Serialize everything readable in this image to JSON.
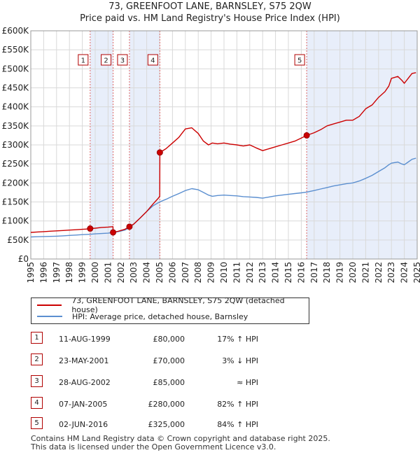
{
  "title_line1": "73, GREENFOOT LANE, BARNSLEY, S75 2QW",
  "title_line2": "Price paid vs. HM Land Registry's House Price Index (HPI)",
  "legend": [
    {
      "label": "73, GREENFOOT LANE, BARNSLEY, S75 2QW (detached house)",
      "color": "#cc0000"
    },
    {
      "label": "HPI: Average price, detached house, Barnsley",
      "color": "#5b8fd0"
    }
  ],
  "transactions": [
    {
      "num": "1",
      "date": "11-AUG-1999",
      "price": "£80,000",
      "hpi": "17% ↑ HPI"
    },
    {
      "num": "2",
      "date": "23-MAY-2001",
      "price": "£70,000",
      "hpi": "3% ↓ HPI"
    },
    {
      "num": "3",
      "date": "28-AUG-2002",
      "price": "£85,000",
      "hpi": "≈ HPI"
    },
    {
      "num": "4",
      "date": "07-JAN-2005",
      "price": "£280,000",
      "hpi": "82% ↑ HPI"
    },
    {
      "num": "5",
      "date": "02-JUN-2016",
      "price": "£325,000",
      "hpi": "84% ↑ HPI"
    }
  ],
  "footer_line1": "Contains HM Land Registry data © Crown copyright and database right 2025.",
  "footer_line2": "This data is licensed under the Open Government Licence v3.0.",
  "chart_data": {
    "type": "line",
    "title": "73, GREENFOOT LANE, BARNSLEY, S75 2QW",
    "subtitle": "Price paid vs. HM Land Registry's House Price Index (HPI)",
    "xlim": [
      1995,
      2025
    ],
    "ylim": [
      0,
      600000
    ],
    "x_ticks": [
      "1995",
      "1996",
      "1997",
      "1998",
      "1999",
      "2000",
      "2001",
      "2002",
      "2003",
      "2004",
      "2005",
      "2006",
      "2007",
      "2008",
      "2009",
      "2010",
      "2011",
      "2012",
      "2013",
      "2014",
      "2015",
      "2016",
      "2017",
      "2018",
      "2019",
      "2020",
      "2021",
      "2022",
      "2023",
      "2024",
      "2025"
    ],
    "y_ticks": [
      {
        "value": 0,
        "label": "£0"
      },
      {
        "value": 50000,
        "label": "£50K"
      },
      {
        "value": 100000,
        "label": "£100K"
      },
      {
        "value": 150000,
        "label": "£150K"
      },
      {
        "value": 200000,
        "label": "£200K"
      },
      {
        "value": 250000,
        "label": "£250K"
      },
      {
        "value": 300000,
        "label": "£300K"
      },
      {
        "value": 350000,
        "label": "£350K"
      },
      {
        "value": 400000,
        "label": "£400K"
      },
      {
        "value": 450000,
        "label": "£450K"
      },
      {
        "value": 500000,
        "label": "£500K"
      },
      {
        "value": 550000,
        "label": "£550K"
      },
      {
        "value": 600000,
        "label": "£600K"
      }
    ],
    "grid": true,
    "sale_markers": [
      {
        "label": "1",
        "x": 1999.61,
        "y": 80000
      },
      {
        "label": "2",
        "x": 2001.39,
        "y": 70000
      },
      {
        "label": "3",
        "x": 2002.66,
        "y": 85000
      },
      {
        "label": "4",
        "x": 2005.02,
        "y": 280000
      },
      {
        "label": "5",
        "x": 2016.42,
        "y": 325000
      }
    ],
    "shaded_ranges": [
      [
        1999.61,
        2001.39
      ],
      [
        2002.66,
        2005.02
      ],
      [
        2016.42,
        2025.0
      ]
    ],
    "series": [
      {
        "name": "73, GREENFOOT LANE, BARNSLEY, S75 2QW (detached house)",
        "color": "#cc0000",
        "x": [
          1995.0,
          1995.5,
          1996.0,
          1996.5,
          1997.0,
          1997.5,
          1998.0,
          1998.5,
          1999.0,
          1999.5,
          1999.61,
          2000.0,
          2000.5,
          2001.0,
          2001.38,
          2001.39,
          2001.8,
          2002.3,
          2002.66,
          2003.0,
          2003.5,
          2004.0,
          2004.5,
          2004.9,
          2005.01,
          2005.02,
          2005.5,
          2006.0,
          2006.5,
          2007.0,
          2007.5,
          2008.0,
          2008.4,
          2008.8,
          2009.1,
          2009.5,
          2010.0,
          2010.5,
          2011.0,
          2011.5,
          2012.0,
          2012.5,
          2013.0,
          2013.5,
          2014.0,
          2014.5,
          2015.0,
          2015.5,
          2016.0,
          2016.42,
          2017.0,
          2017.5,
          2018.0,
          2018.5,
          2019.0,
          2019.5,
          2020.0,
          2020.5,
          2021.0,
          2021.5,
          2022.0,
          2022.5,
          2022.8,
          2023.0,
          2023.5,
          2023.8,
          2024.0,
          2024.3,
          2024.6,
          2024.9
        ],
        "y": [
          70000,
          71000,
          72000,
          73000,
          74000,
          75000,
          76000,
          77000,
          78000,
          79000,
          80000,
          81000,
          83000,
          84000,
          85000,
          70000,
          73000,
          78000,
          85000,
          92000,
          108000,
          125000,
          145000,
          160000,
          165000,
          280000,
          290000,
          305000,
          320000,
          342000,
          345000,
          330000,
          310000,
          300000,
          305000,
          303000,
          305000,
          302000,
          300000,
          297000,
          300000,
          292000,
          285000,
          290000,
          295000,
          300000,
          305000,
          310000,
          318000,
          325000,
          332000,
          340000,
          350000,
          355000,
          360000,
          365000,
          365000,
          375000,
          395000,
          405000,
          425000,
          440000,
          455000,
          475000,
          480000,
          470000,
          462000,
          475000,
          488000,
          490000
        ]
      },
      {
        "name": "HPI: Average price, detached house, Barnsley",
        "color": "#5b8fd0",
        "x": [
          1995.0,
          1995.5,
          1996.0,
          1996.5,
          1997.0,
          1997.5,
          1998.0,
          1998.5,
          1999.0,
          1999.61,
          2000.0,
          2000.5,
          2001.0,
          2001.39,
          2001.8,
          2002.3,
          2002.66,
          2003.0,
          2003.5,
          2004.0,
          2004.5,
          2005.0,
          2005.5,
          2006.0,
          2006.5,
          2007.0,
          2007.5,
          2008.0,
          2008.4,
          2008.8,
          2009.1,
          2009.5,
          2010.0,
          2010.5,
          2011.0,
          2011.5,
          2012.0,
          2012.5,
          2013.0,
          2013.5,
          2014.0,
          2014.5,
          2015.0,
          2015.5,
          2016.0,
          2016.42,
          2017.0,
          2017.5,
          2018.0,
          2018.5,
          2019.0,
          2019.5,
          2020.0,
          2020.5,
          2021.0,
          2021.5,
          2022.0,
          2022.5,
          2022.8,
          2023.0,
          2023.5,
          2023.8,
          2024.0,
          2024.3,
          2024.6,
          2024.9
        ],
        "y": [
          58000,
          58500,
          59000,
          59500,
          60000,
          61000,
          62000,
          63000,
          64000,
          65000,
          66000,
          67000,
          68000,
          70000,
          72000,
          76000,
          82000,
          92000,
          108000,
          125000,
          140000,
          150000,
          157000,
          165000,
          172000,
          180000,
          185000,
          182000,
          175000,
          168000,
          165000,
          167000,
          168000,
          167000,
          166000,
          164000,
          163000,
          162000,
          160000,
          163000,
          166000,
          168000,
          170000,
          172000,
          174000,
          176000,
          180000,
          184000,
          188000,
          192000,
          195000,
          198000,
          200000,
          205000,
          212000,
          220000,
          230000,
          240000,
          248000,
          252000,
          255000,
          250000,
          248000,
          255000,
          262000,
          265000
        ]
      }
    ]
  }
}
